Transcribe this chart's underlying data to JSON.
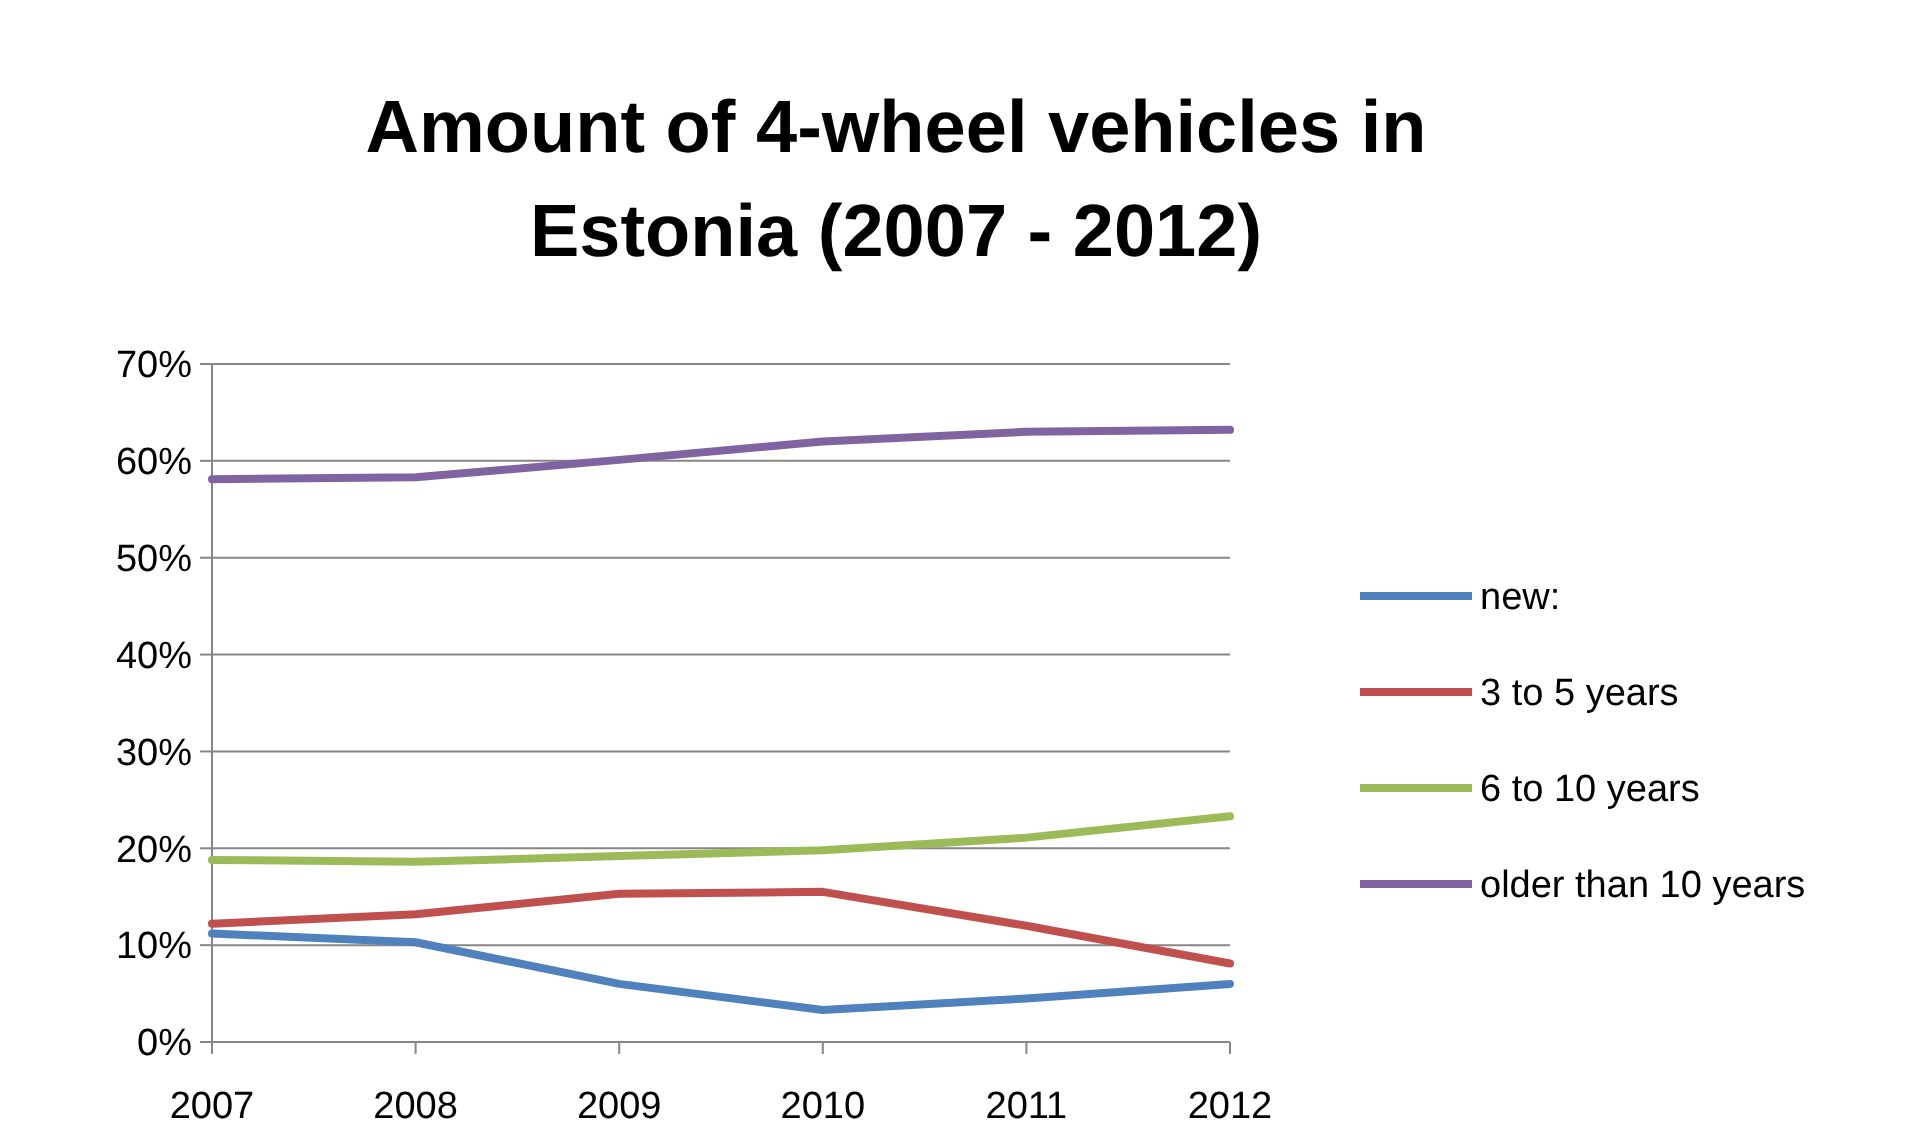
{
  "chart_data": {
    "type": "line",
    "title": "Amount of 4-wheel vehicles in Estonia (2007 - 2012)",
    "categories": [
      "2007",
      "2008",
      "2009",
      "2010",
      "2011",
      "2012"
    ],
    "series": [
      {
        "name": "new:",
        "color": "#4f81bd",
        "values": [
          11.2,
          10.3,
          6.0,
          3.3,
          4.5,
          6.0
        ]
      },
      {
        "name": "3 to 5 years",
        "color": "#c0504d",
        "values": [
          12.2,
          13.2,
          15.3,
          15.5,
          12.0,
          8.1
        ]
      },
      {
        "name": "6 to 10 years",
        "color": "#9bbb59",
        "values": [
          18.8,
          18.6,
          19.2,
          19.8,
          21.1,
          23.3
        ]
      },
      {
        "name": "older than 10 years",
        "color": "#8064a2",
        "values": [
          58.1,
          58.3,
          60.1,
          62.0,
          63.0,
          63.2
        ]
      }
    ],
    "ylim": [
      0,
      70
    ],
    "yticks": [
      {
        "value": 0,
        "label": "0%"
      },
      {
        "value": 10,
        "label": "10%"
      },
      {
        "value": 20,
        "label": "20%"
      },
      {
        "value": 30,
        "label": "30%"
      },
      {
        "value": 40,
        "label": "40%"
      },
      {
        "value": 50,
        "label": "50%"
      },
      {
        "value": 60,
        "label": "60%"
      },
      {
        "value": 70,
        "label": "70%"
      }
    ],
    "grid": "y",
    "legend": "right",
    "marker": "none",
    "line_style": "solid"
  }
}
